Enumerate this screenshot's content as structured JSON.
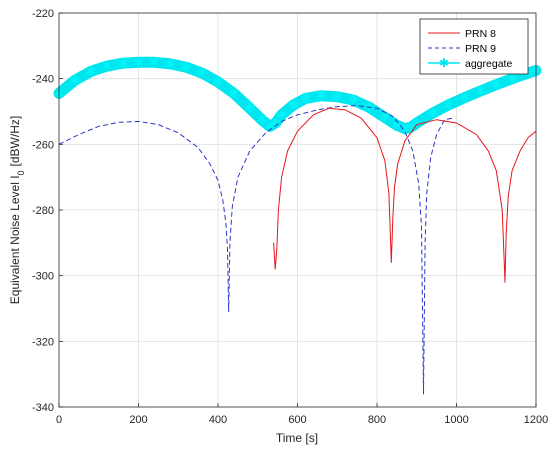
{
  "chart_data": {
    "type": "line",
    "title": "",
    "xlabel": "Time [s]",
    "ylabel": "Equivalent Noise Level I",
    "ylabel_subscript": "0",
    "ylabel_unit": "[dBW/Hz]",
    "xlim": [
      0,
      1200
    ],
    "ylim": [
      -340,
      -220
    ],
    "xticks": [
      0,
      200,
      400,
      600,
      800,
      1000,
      1200
    ],
    "yticks": [
      -340,
      -320,
      -300,
      -280,
      -260,
      -240,
      -220
    ],
    "grid": true,
    "legend_position": "top-right",
    "series": [
      {
        "name": "PRN 8",
        "color": "#e8141b",
        "style": "solid",
        "x": [
          540,
          544,
          548,
          552,
          560,
          575,
          600,
          640,
          680,
          720,
          760,
          800,
          820,
          830,
          836,
          840,
          844,
          852,
          870,
          900,
          950,
          1000,
          1050,
          1080,
          1100,
          1115,
          1122,
          1125,
          1130,
          1140,
          1160,
          1180,
          1200
        ],
        "y": [
          -290,
          -298,
          -292,
          -280,
          -270,
          -262,
          -256,
          -251,
          -249,
          -249.5,
          -252,
          -258,
          -265,
          -275,
          -296,
          -282,
          -273,
          -266,
          -259,
          -254,
          -252.5,
          -253.5,
          -257,
          -262,
          -268,
          -280,
          -302,
          -287,
          -276,
          -268,
          -262,
          -258,
          -256
        ]
      },
      {
        "name": "PRN 9",
        "color": "#2b36c9",
        "style": "dashed",
        "x": [
          0,
          50,
          100,
          150,
          200,
          250,
          300,
          350,
          380,
          400,
          412,
          420,
          424,
          427,
          430,
          436,
          450,
          480,
          520,
          560,
          600,
          650,
          700,
          750,
          800,
          840,
          870,
          890,
          905,
          912,
          917,
          921,
          925,
          935,
          950,
          970,
          990
        ],
        "y": [
          -260,
          -257,
          -254.5,
          -253.3,
          -253,
          -254,
          -256.5,
          -261,
          -266,
          -271,
          -277,
          -284,
          -292,
          -311,
          -290,
          -279,
          -270,
          -262,
          -256.5,
          -253,
          -251,
          -249.5,
          -248.5,
          -248.2,
          -249,
          -251.5,
          -256,
          -262,
          -272,
          -285,
          -336,
          -290,
          -275,
          -264,
          -257,
          -252.5,
          -252
        ]
      },
      {
        "name": "aggregate",
        "color": "#00e6ee",
        "style": "marker-star",
        "x": [
          0,
          40,
          80,
          120,
          160,
          200,
          240,
          280,
          320,
          360,
          400,
          440,
          480,
          510,
          530,
          545,
          560,
          590,
          620,
          660,
          700,
          740,
          780,
          820,
          850,
          870,
          885,
          900,
          940,
          980,
          1020,
          1060,
          1100,
          1140,
          1180,
          1200
        ],
        "y": [
          -244.5,
          -240.5,
          -237.8,
          -236.2,
          -235.3,
          -235,
          -235,
          -235.5,
          -236.5,
          -238.3,
          -241,
          -244.5,
          -249,
          -252.5,
          -254.5,
          -253.5,
          -251,
          -248,
          -246,
          -245.2,
          -245.5,
          -246.5,
          -248.7,
          -251.8,
          -254.2,
          -255.2,
          -254.8,
          -253.5,
          -250.5,
          -248,
          -245.8,
          -243.8,
          -241.8,
          -240,
          -238.3,
          -237.5
        ]
      }
    ]
  }
}
